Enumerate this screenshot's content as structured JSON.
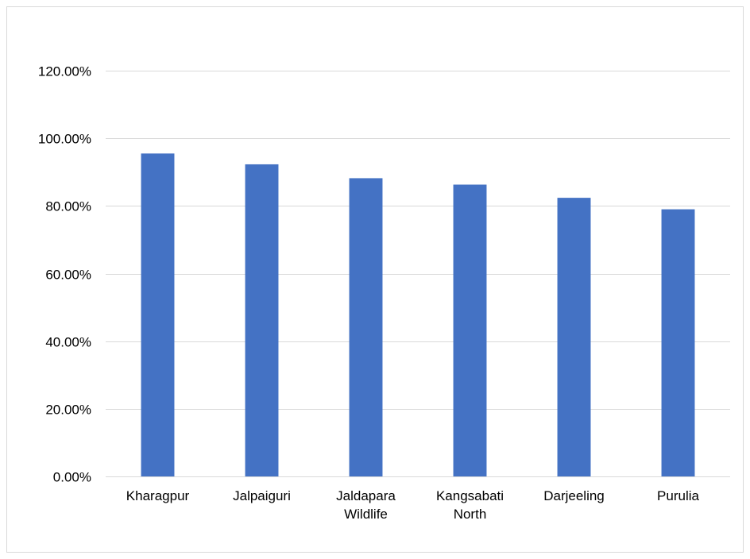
{
  "chart_data": {
    "type": "bar",
    "categories": [
      "Kharagpur",
      "Jalpaiguri",
      "Jaldapara Wildlife",
      "Kangsabati North",
      "Darjeeling",
      "Purulia"
    ],
    "category_lines": [
      [
        "Kharagpur"
      ],
      [
        "Jalpaiguri"
      ],
      [
        "Jaldapara",
        "Wildlife"
      ],
      [
        "Kangsabati",
        "North"
      ],
      [
        "Darjeeling"
      ],
      [
        "Purulia"
      ]
    ],
    "values": [
      95.5,
      92.3,
      88.2,
      86.3,
      82.4,
      79.0
    ],
    "title": "",
    "xlabel": "",
    "ylabel": "",
    "ylim": [
      0,
      120
    ],
    "yticks": [
      0,
      20,
      40,
      60,
      80,
      100,
      120
    ],
    "ytick_labels": [
      "0.00%",
      "20.00%",
      "40.00%",
      "60.00%",
      "80.00%",
      "100.00%",
      "120.00%"
    ],
    "grid": true,
    "legend": "none",
    "bar_color": "#4472c4"
  }
}
